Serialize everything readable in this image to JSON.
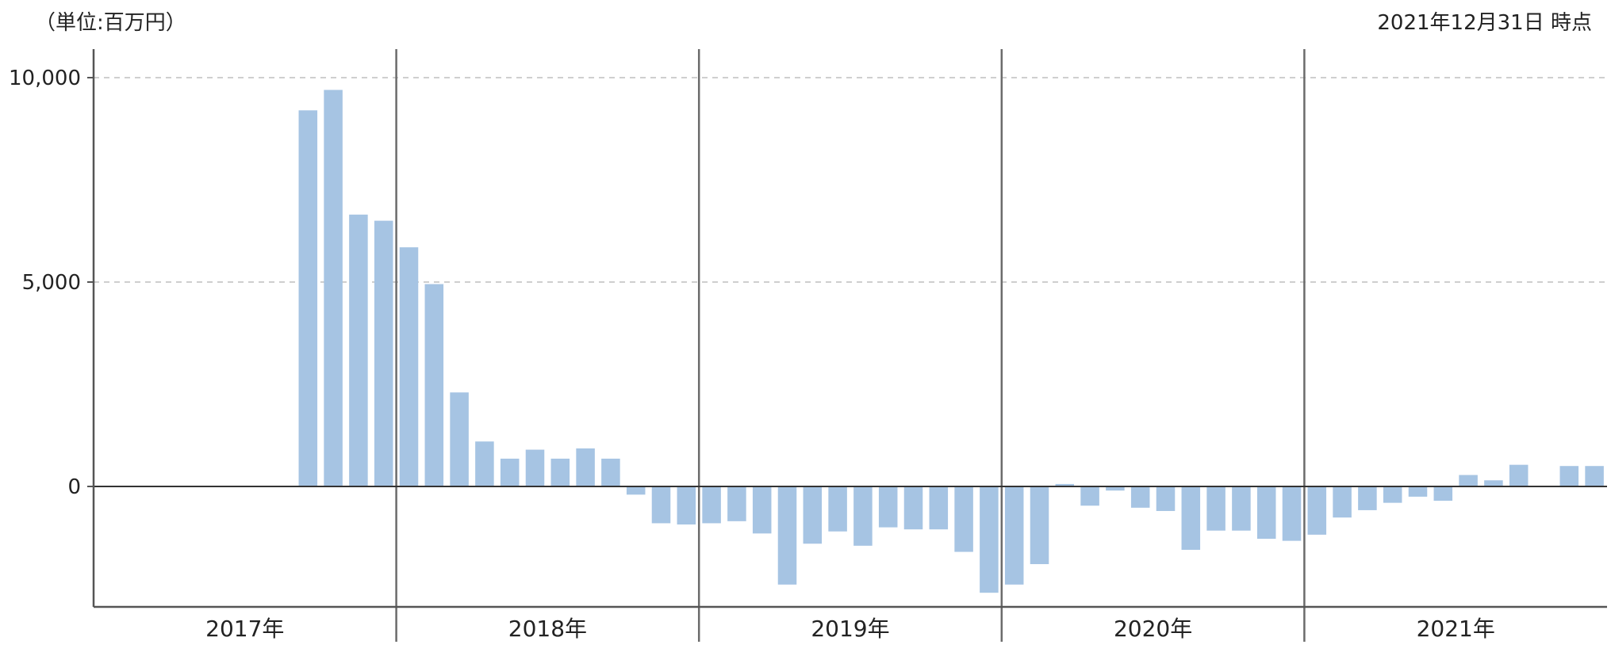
{
  "header": {
    "unit_label": "（単位:百万円）",
    "as_of_label": "2021年12月31日 時点"
  },
  "chart_data": {
    "type": "bar",
    "ylim": [
      -2900,
      10000
    ],
    "yticks": [
      0,
      5000,
      10000
    ],
    "ytick_labels": [
      "0",
      "5,000",
      "10,000"
    ],
    "grid": true,
    "bar_color": "#a6c4e3",
    "years": [
      "2017年",
      "2018年",
      "2019年",
      "2020年",
      "2021年"
    ],
    "months_per_year": 12,
    "values": [
      null,
      null,
      null,
      null,
      null,
      null,
      null,
      null,
      9200,
      9700,
      6650,
      6500,
      5850,
      4950,
      2300,
      1100,
      680,
      900,
      680,
      930,
      680,
      -200,
      -900,
      -930,
      -900,
      -850,
      -1150,
      -2400,
      -1400,
      -1100,
      -1450,
      -1000,
      -1050,
      -1050,
      -1600,
      -2600,
      -2400,
      -1900,
      60,
      -470,
      -100,
      -520,
      -600,
      -1550,
      -1080,
      -1080,
      -1280,
      -1330,
      -1180,
      -760,
      -580,
      -400,
      -250,
      -350,
      280,
      150,
      530,
      null,
      500,
      500
    ]
  }
}
